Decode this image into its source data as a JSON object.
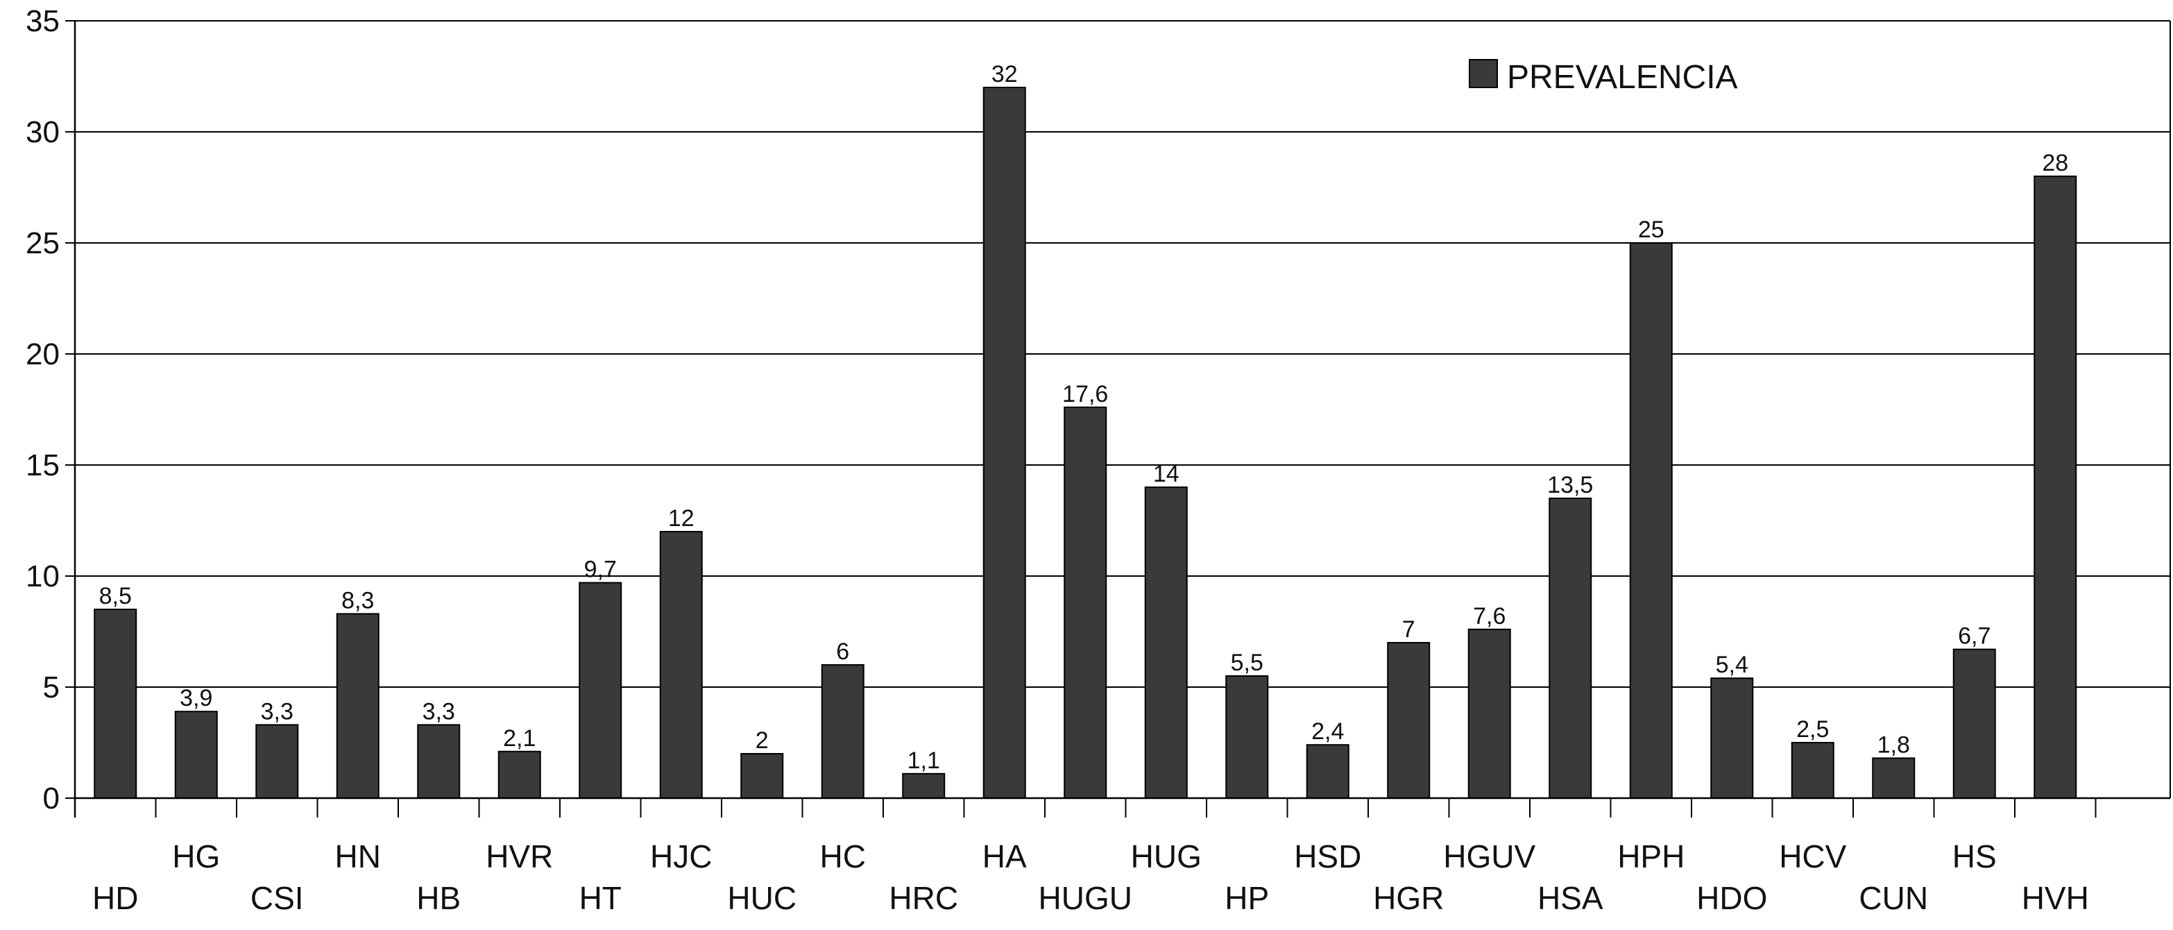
{
  "chart_data": {
    "type": "bar",
    "categories": [
      "HD",
      "HG",
      "CSI",
      "HN",
      "HB",
      "HVR",
      "HT",
      "HJC",
      "HUC",
      "HC",
      "HRC",
      "HA",
      "HUGU",
      "HUG",
      "HP",
      "HSD",
      "HGR",
      "HGUV",
      "HSA",
      "HPH",
      "HDO",
      "HCV",
      "CUN",
      "HS",
      "HVH"
    ],
    "series": [
      {
        "name": "PREVALENCIA",
        "values": [
          8.5,
          3.9,
          3.3,
          8.3,
          3.3,
          2.1,
          9.7,
          12,
          2,
          6,
          1.1,
          32,
          17.6,
          14,
          5.5,
          2.4,
          7,
          7.6,
          13.5,
          25,
          5.4,
          2.5,
          1.8,
          6.7,
          28
        ],
        "labels": [
          "8,5",
          "3,9",
          "3,3",
          "8,3",
          "3,3",
          "2,1",
          "9,7",
          "12",
          "2",
          "6",
          "1,1",
          "32",
          "17,6",
          "14",
          "5,5",
          "2,4",
          "7",
          "7,6",
          "13,5",
          "25",
          "5,4",
          "2,5",
          "1,8",
          "6,7",
          "28"
        ]
      }
    ],
    "yticks": [
      "0",
      "5",
      "10",
      "15",
      "20",
      "25",
      "30",
      "35"
    ],
    "ylim": [
      0,
      35
    ],
    "grid": true,
    "legend": "top-right",
    "colors": {
      "bar": "#3a3a3a",
      "grid": "#000000"
    }
  }
}
